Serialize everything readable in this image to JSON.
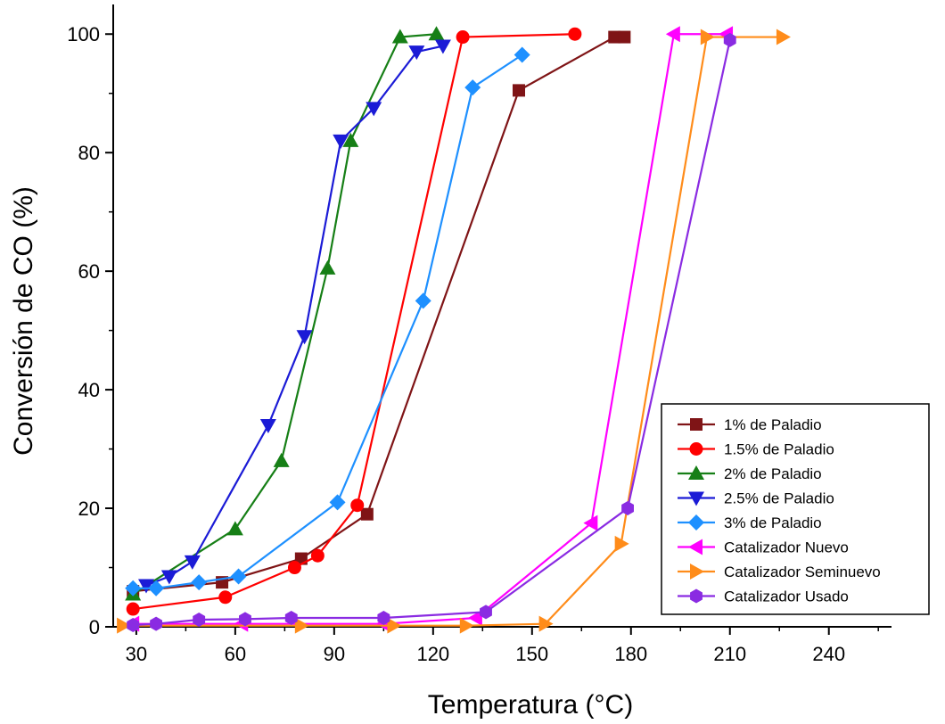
{
  "chart_data": {
    "type": "line",
    "title": "",
    "xlabel": "Temperatura (°C)",
    "ylabel": "Conversión de CO (%)",
    "xlim": [
      23,
      259
    ],
    "ylim": [
      0,
      105
    ],
    "xticks": [
      30,
      60,
      90,
      120,
      150,
      180,
      210,
      240
    ],
    "yticks": [
      0,
      20,
      40,
      60,
      80,
      100
    ],
    "grid": false,
    "legend_position": "bottom-right",
    "series": [
      {
        "name": "1% de Paladio",
        "color": "#7f1416",
        "marker": "square",
        "x": [
          29,
          56,
          80,
          100,
          146,
          175,
          178
        ],
        "y": [
          6,
          7.5,
          11.5,
          19,
          90.5,
          99.5,
          99.5
        ]
      },
      {
        "name": "1.5% de Paladio",
        "color": "#ff0000",
        "marker": "circle",
        "x": [
          29,
          57,
          78,
          85,
          97,
          129,
          163
        ],
        "y": [
          3,
          5,
          10,
          12,
          20.5,
          99.5,
          100
        ]
      },
      {
        "name": "2% de Paladio",
        "color": "#167f16",
        "marker": "triangle-up",
        "x": [
          29,
          60,
          74,
          88,
          95,
          110,
          121
        ],
        "y": [
          5.5,
          16.5,
          28,
          60.5,
          82,
          99.5,
          100
        ]
      },
      {
        "name": "2.5% de Paladio",
        "color": "#1b1bd6",
        "marker": "triangle-down",
        "x": [
          33,
          40,
          47,
          70,
          81,
          92,
          102,
          115,
          123
        ],
        "y": [
          7,
          8.5,
          11,
          34,
          49,
          82,
          87.5,
          97,
          98
        ]
      },
      {
        "name": "3% de Paladio",
        "color": "#1e90ff",
        "marker": "diamond",
        "x": [
          29,
          36,
          49,
          61,
          91,
          117,
          132,
          147
        ],
        "y": [
          6.5,
          6.5,
          7.5,
          8.5,
          21,
          55,
          91,
          96.5
        ]
      },
      {
        "name": "Catalizador Nuevo",
        "color": "#ff00ff",
        "marker": "triangle-left",
        "x": [
          29,
          62,
          105,
          133,
          168,
          193,
          209
        ],
        "y": [
          0.5,
          0.5,
          0.5,
          1.5,
          17.5,
          100,
          100
        ]
      },
      {
        "name": "Catalizador Seminuevo",
        "color": "#ff8c1a",
        "marker": "triangle-right",
        "x": [
          26,
          80,
          108,
          130,
          154,
          177,
          203,
          226
        ],
        "y": [
          0.2,
          0.2,
          0.2,
          0.2,
          0.5,
          14,
          99.5,
          99.5
        ]
      },
      {
        "name": "Catalizador Usado",
        "color": "#8a2be2",
        "marker": "hexagon",
        "x": [
          29,
          36,
          49,
          63,
          77,
          105,
          136,
          179,
          210
        ],
        "y": [
          0.3,
          0.5,
          1.2,
          1.3,
          1.5,
          1.5,
          2.5,
          20,
          99
        ]
      }
    ]
  }
}
